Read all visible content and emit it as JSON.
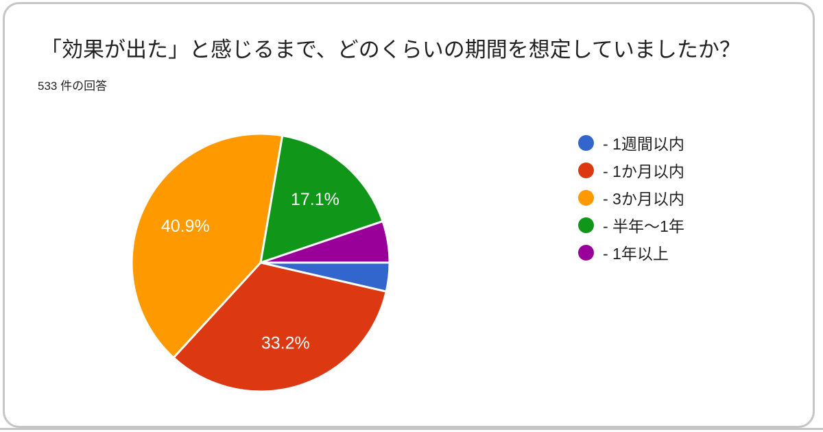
{
  "card": {
    "title": "「効果が出た」と感じるまで、どのくらいの期間を想定していましたか？",
    "response_count": "533 件の回答"
  },
  "colors": {
    "card_border": "#c6c6c6",
    "text": "#212121",
    "slice_separator": "#ffffff",
    "data_label_text": "#ffffff"
  },
  "chart_data": {
    "type": "pie",
    "title": "「効果が出た」と感じるまで、どのくらいの期間を想定していましたか？",
    "subtitle": "533 件の回答",
    "total_responses": 533,
    "legend_position": "right",
    "direction": "clockwise",
    "start_angle_deg_clockwise_from_top": 90,
    "label_radius_ratio": 0.65,
    "label_min_pct_to_show": 10,
    "slices": [
      {
        "key": "within-1-week",
        "label": "1週間以内",
        "legend_text": "- 1週間以内",
        "value_pct": 3.6,
        "estimated": true,
        "data_label": null,
        "color": "#3366CC"
      },
      {
        "key": "within-1-month",
        "label": "1か月以内",
        "legend_text": "- 1か月以内",
        "value_pct": 33.2,
        "estimated": false,
        "data_label": "33.2%",
        "color": "#DC3912"
      },
      {
        "key": "within-3-months",
        "label": "3か月以内",
        "legend_text": "- 3か月以内",
        "value_pct": 40.9,
        "estimated": false,
        "data_label": "40.9%",
        "color": "#FF9900"
      },
      {
        "key": "6-months-to-1-year",
        "label": "半年〜1年",
        "legend_text": "- 半年〜1年",
        "value_pct": 17.1,
        "estimated": false,
        "data_label": "17.1%",
        "color": "#109618"
      },
      {
        "key": "over-1-year",
        "label": "1年以上",
        "legend_text": "- 1年以上",
        "value_pct": 5.2,
        "estimated": true,
        "data_label": null,
        "color": "#990099"
      }
    ]
  }
}
